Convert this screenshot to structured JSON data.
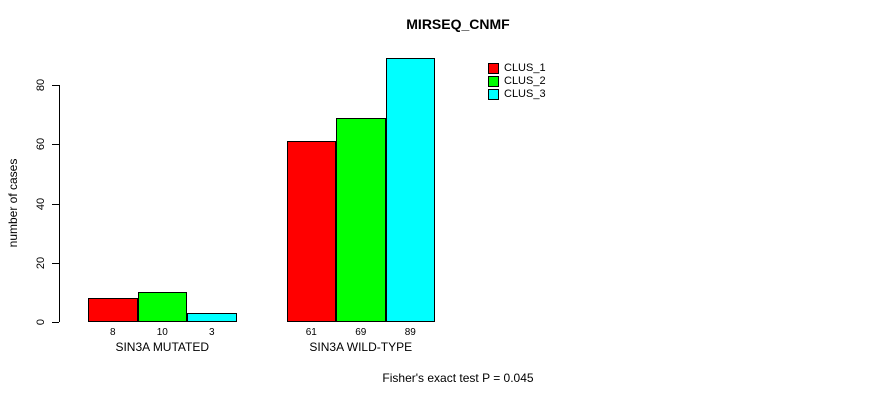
{
  "title": "MIRSEQ_CNMF",
  "ylabel": "number of cases",
  "footnote": "Fisher's exact test P = 0.045",
  "legend": {
    "items": [
      {
        "label": "CLUS_1",
        "color": "#ff0000"
      },
      {
        "label": "CLUS_2",
        "color": "#00ff00"
      },
      {
        "label": "CLUS_3",
        "color": "#00ffff"
      }
    ]
  },
  "colors": {
    "bar_border": "#000000",
    "axis": "#000000",
    "background": "#ffffff"
  },
  "chart_data": {
    "type": "bar",
    "title": "MIRSEQ_CNMF",
    "xlabel": "",
    "ylabel": "number of cases",
    "categories": [
      "SIN3A MUTATED",
      "SIN3A WILD-TYPE"
    ],
    "series": [
      {
        "name": "CLUS_1",
        "color": "#ff0000",
        "values": [
          8,
          61
        ]
      },
      {
        "name": "CLUS_2",
        "color": "#00ff00",
        "values": [
          10,
          69
        ]
      },
      {
        "name": "CLUS_3",
        "color": "#00ffff",
        "values": [
          3,
          89
        ]
      }
    ],
    "bar_value_labels": [
      [
        "8",
        "10",
        "3"
      ],
      [
        "61",
        "69",
        "89"
      ]
    ],
    "ylim": [
      0,
      80
    ],
    "yticks": [
      0,
      20,
      40,
      60,
      80
    ],
    "grid": false,
    "legend_position": "top-right",
    "annotation": "Fisher's exact test P = 0.045"
  }
}
